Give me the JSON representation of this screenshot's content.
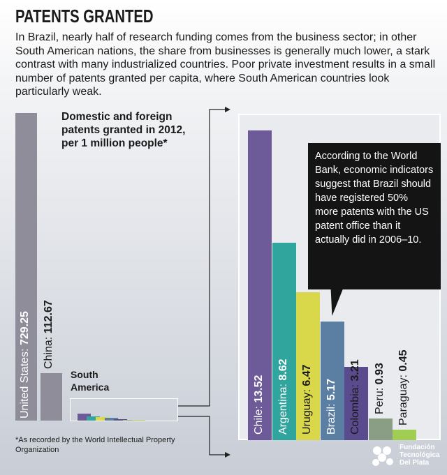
{
  "header": {
    "title": "PATENTS GRANTED",
    "intro": "In Brazil, nearly half of research funding comes from the business sector; in other South American nations, the share from businesses is generally much lower, a stark contrast with many industrialized countries. Poor private investment results in a small number of patents granted per capita, where South American countries look particularly weak."
  },
  "subtitle": "Domestic and foreign patents granted in 2012, per 1 million people*",
  "footnote": "*As recorded by the World Intellectual Property Organization",
  "south_america_label": "South America",
  "callout": "According to the World Bank, economic indicators suggest that Brazil should have registered 50% more patents with the US patent office than it actually did in 2006–10.",
  "logo": {
    "text": "Fundación Tecnológica Del Plata"
  },
  "chart_data": [
    {
      "type": "bar",
      "categories": [
        "United States",
        "China"
      ],
      "values": [
        729.25,
        112.67
      ],
      "labels": [
        "United States: ",
        "China: "
      ],
      "value_labels": [
        "729.25",
        "112.67"
      ],
      "colors": [
        "#8f8d99",
        "#8f8d99"
      ]
    },
    {
      "type": "bar",
      "categories": [
        "Chile",
        "Argentina",
        "Uruguay",
        "Brazil",
        "Colombia",
        "Peru",
        "Paraguay"
      ],
      "values": [
        13.52,
        8.62,
        6.47,
        5.17,
        3.21,
        0.93,
        0.45
      ],
      "labels": [
        "Chile: ",
        "Argentina: ",
        "Uruguay: ",
        "Brazil: ",
        "Colombia: ",
        "Peru: ",
        "Paraguay: "
      ],
      "value_labels": [
        "13.52",
        "8.62",
        "6.47",
        "5.17",
        "3.21",
        "0.93",
        "0.45"
      ],
      "colors": [
        "#6d5a99",
        "#2fa59e",
        "#d8d84a",
        "#5b7fa3",
        "#5a4a8e",
        "#8a9e85",
        "#a2cd55"
      ],
      "label_colors": [
        "#ffffff",
        "#ffffff",
        "#1a1a1a",
        "#ffffff",
        "#1a1a1a",
        "#1a1a1a",
        "#1a1a1a"
      ]
    }
  ]
}
